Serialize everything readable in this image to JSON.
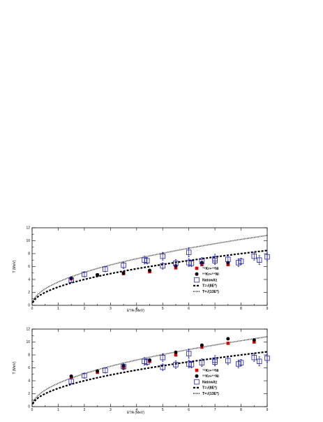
{
  "chart_data": [
    {
      "type": "scatter",
      "xlabel": "E*/A (MeV)",
      "ylabel": "T (MeV)",
      "xlim": [
        0,
        9
      ],
      "ylim": [
        0,
        12
      ],
      "xticks": [
        0,
        1,
        2,
        3,
        4,
        5,
        6,
        7,
        8,
        9
      ],
      "yticks": [
        0,
        2,
        4,
        6,
        8,
        10,
        12
      ],
      "legend_position": "right-center",
      "series": [
        {
          "name": "⁷⁸Kr+⁵⁸Ni",
          "marker": "square-filled",
          "color": "#e00000",
          "points": [
            [
              1.5,
              4.1
            ],
            [
              2.5,
              4.7
            ],
            [
              3.5,
              4.9
            ],
            [
              4.5,
              5.2
            ],
            [
              5.5,
              5.8
            ],
            [
              6.5,
              6.3
            ],
            [
              7.5,
              6.3
            ]
          ]
        },
        {
          "name": "⁸⁶Kr+⁶⁴Ni",
          "marker": "circle-filled",
          "color": "#000000",
          "points": [
            [
              1.5,
              4.2
            ],
            [
              2.5,
              4.7
            ],
            [
              3.5,
              5.0
            ],
            [
              4.5,
              5.4
            ],
            [
              5.5,
              6.1
            ],
            [
              6.5,
              6.6
            ],
            [
              7.5,
              6.6
            ]
          ]
        },
        {
          "name": "Natowitz",
          "marker": "square-open",
          "color": "#1a1aa8",
          "points": [
            [
              1.5,
              3.9,
              0.4
            ],
            [
              2.0,
              4.8,
              0.4
            ],
            [
              2.8,
              5.6,
              0.4
            ],
            [
              3.5,
              6.2,
              0.5
            ],
            [
              4.3,
              7.0,
              0.6
            ],
            [
              4.4,
              6.9,
              0.5
            ],
            [
              5.0,
              7.6,
              0.6
            ],
            [
              5.0,
              6.1,
              0.5
            ],
            [
              5.5,
              6.5,
              0.6
            ],
            [
              6.0,
              8.2,
              0.7
            ],
            [
              6.0,
              6.6,
              0.6
            ],
            [
              6.1,
              6.5,
              0.5
            ],
            [
              6.5,
              6.8,
              0.6
            ],
            [
              7.0,
              7.2,
              0.7
            ],
            [
              7.0,
              6.9,
              0.6
            ],
            [
              7.5,
              7.1,
              0.6
            ],
            [
              7.9,
              6.6,
              0.6
            ],
            [
              8.0,
              6.8,
              0.5
            ],
            [
              8.5,
              7.6,
              0.6
            ],
            [
              8.7,
              7.0,
              0.7
            ],
            [
              9.0,
              7.5,
              0.6
            ]
          ]
        },
        {
          "name": "T=√(8E*)",
          "style": "dashed",
          "color": "#000000",
          "coefficient": 8
        },
        {
          "name": "T=√(13E*)",
          "style": "dotted",
          "color": "#000000",
          "coefficient": 13
        }
      ]
    },
    {
      "type": "scatter",
      "xlabel": "E*/A (MeV)",
      "ylabel": "T (MeV)",
      "xlim": [
        0,
        9
      ],
      "ylim": [
        0,
        12
      ],
      "xticks": [
        0,
        1,
        2,
        3,
        4,
        5,
        6,
        7,
        8,
        9
      ],
      "yticks": [
        0,
        2,
        4,
        6,
        8,
        10,
        12
      ],
      "legend_position": "right-center",
      "series": [
        {
          "name": "⁷⁸Kr+⁵⁸Ni",
          "marker": "square-filled",
          "color": "#e00000",
          "points": [
            [
              1.5,
              4.6
            ],
            [
              2.5,
              5.3
            ],
            [
              3.5,
              6.0
            ],
            [
              4.5,
              7.0
            ],
            [
              5.5,
              8.0
            ],
            [
              6.5,
              9.2
            ],
            [
              7.5,
              9.8
            ],
            [
              8.5,
              10.0
            ]
          ]
        },
        {
          "name": "⁸⁶Kr+⁶⁴Ni",
          "marker": "circle-filled",
          "color": "#000000",
          "points": [
            [
              1.5,
              4.7
            ],
            [
              2.5,
              5.5
            ],
            [
              3.5,
              6.3
            ],
            [
              4.5,
              7.2
            ],
            [
              5.5,
              8.4
            ],
            [
              6.5,
              9.5
            ],
            [
              7.5,
              10.5
            ],
            [
              8.5,
              10.3
            ]
          ]
        },
        {
          "name": "Natowitz",
          "marker": "square-open",
          "color": "#1a1aa8",
          "points": [
            [
              1.5,
              3.9,
              0.4
            ],
            [
              2.0,
              4.8,
              0.4
            ],
            [
              2.8,
              5.6,
              0.4
            ],
            [
              3.5,
              6.2,
              0.5
            ],
            [
              4.3,
              7.0,
              0.6
            ],
            [
              4.4,
              6.9,
              0.5
            ],
            [
              5.0,
              7.6,
              0.6
            ],
            [
              5.0,
              6.1,
              0.5
            ],
            [
              5.5,
              6.5,
              0.6
            ],
            [
              6.0,
              8.2,
              0.7
            ],
            [
              6.0,
              6.6,
              0.6
            ],
            [
              6.1,
              6.5,
              0.5
            ],
            [
              6.5,
              6.8,
              0.6
            ],
            [
              7.0,
              7.2,
              0.7
            ],
            [
              7.0,
              6.9,
              0.6
            ],
            [
              7.5,
              7.1,
              0.6
            ],
            [
              7.9,
              6.6,
              0.6
            ],
            [
              8.0,
              6.8,
              0.5
            ],
            [
              8.5,
              7.6,
              0.6
            ],
            [
              8.7,
              7.0,
              0.7
            ],
            [
              9.0,
              7.5,
              0.6
            ]
          ]
        },
        {
          "name": "T=√(8E*)",
          "style": "dashed",
          "color": "#000000",
          "coefficient": 8
        },
        {
          "name": "T=√(13E*)",
          "style": "dotted",
          "color": "#000000",
          "coefficient": 13
        }
      ]
    }
  ]
}
